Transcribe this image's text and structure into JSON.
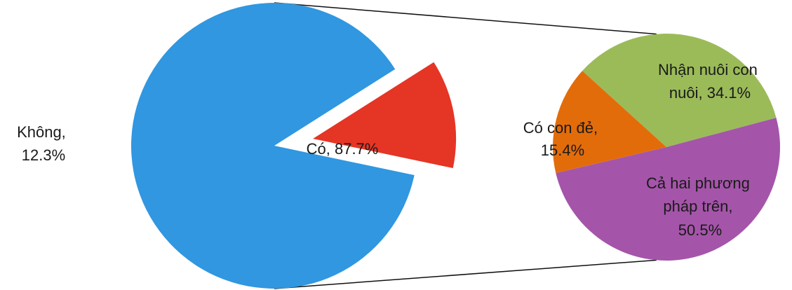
{
  "chart_data": [
    {
      "type": "pie",
      "slices": [
        {
          "label": "Có",
          "value": 87.7,
          "color": "#3097e0",
          "text": [
            "Có, 87.7%"
          ]
        },
        {
          "label": "Không",
          "value": 12.3,
          "color": "#e53525",
          "exploded": true,
          "text": [
            "Không,",
            "12.3%"
          ]
        }
      ]
    },
    {
      "type": "pie",
      "detail_of": "Có",
      "slices": [
        {
          "label": "Nhận nuôi con nuôi",
          "value": 34.1,
          "color": "#9bbb59",
          "text": [
            "Nhận nuôi con",
            "nuôi, 34.1%"
          ]
        },
        {
          "label": "Có con đẻ",
          "value": 15.4,
          "color": "#e36c0a",
          "text": [
            "Có con đẻ,",
            "15.4%"
          ]
        },
        {
          "label": "Cả hai phương pháp trên",
          "value": 50.5,
          "color": "#a455a9",
          "text": [
            "Cả hai phương",
            "pháp trên,",
            "50.5%"
          ]
        }
      ]
    }
  ]
}
